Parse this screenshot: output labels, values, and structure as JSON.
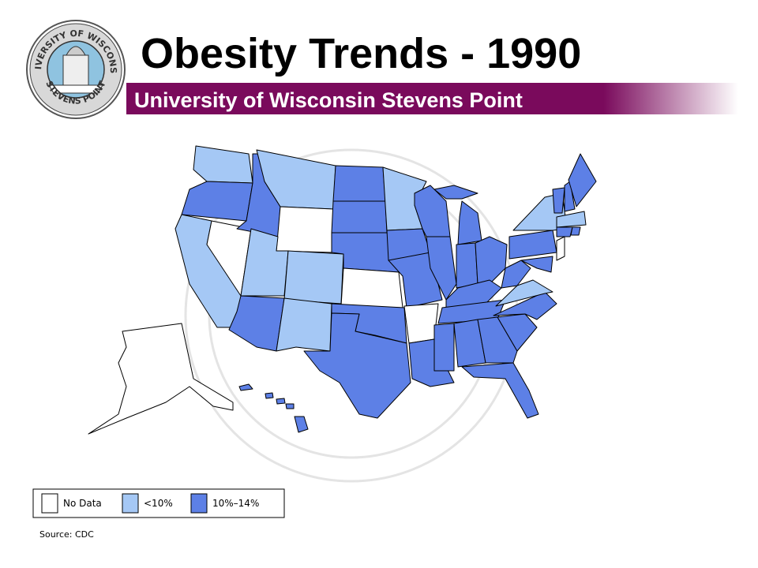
{
  "header": {
    "title": "Obesity Trends - 1990",
    "subtitle": "University of Wisconsin Stevens Point"
  },
  "logo": {
    "top": "UNIVERSITY OF WISCONSIN",
    "bottom": "STEVENS POINT"
  },
  "legend": [
    {
      "label": "No Data",
      "color": "#ffffff"
    },
    {
      "label": "<10%",
      "color": "#a5c8f5"
    },
    {
      "label": "10%–14%",
      "color": "#5d80e6"
    }
  ],
  "source": "Source: CDC"
}
